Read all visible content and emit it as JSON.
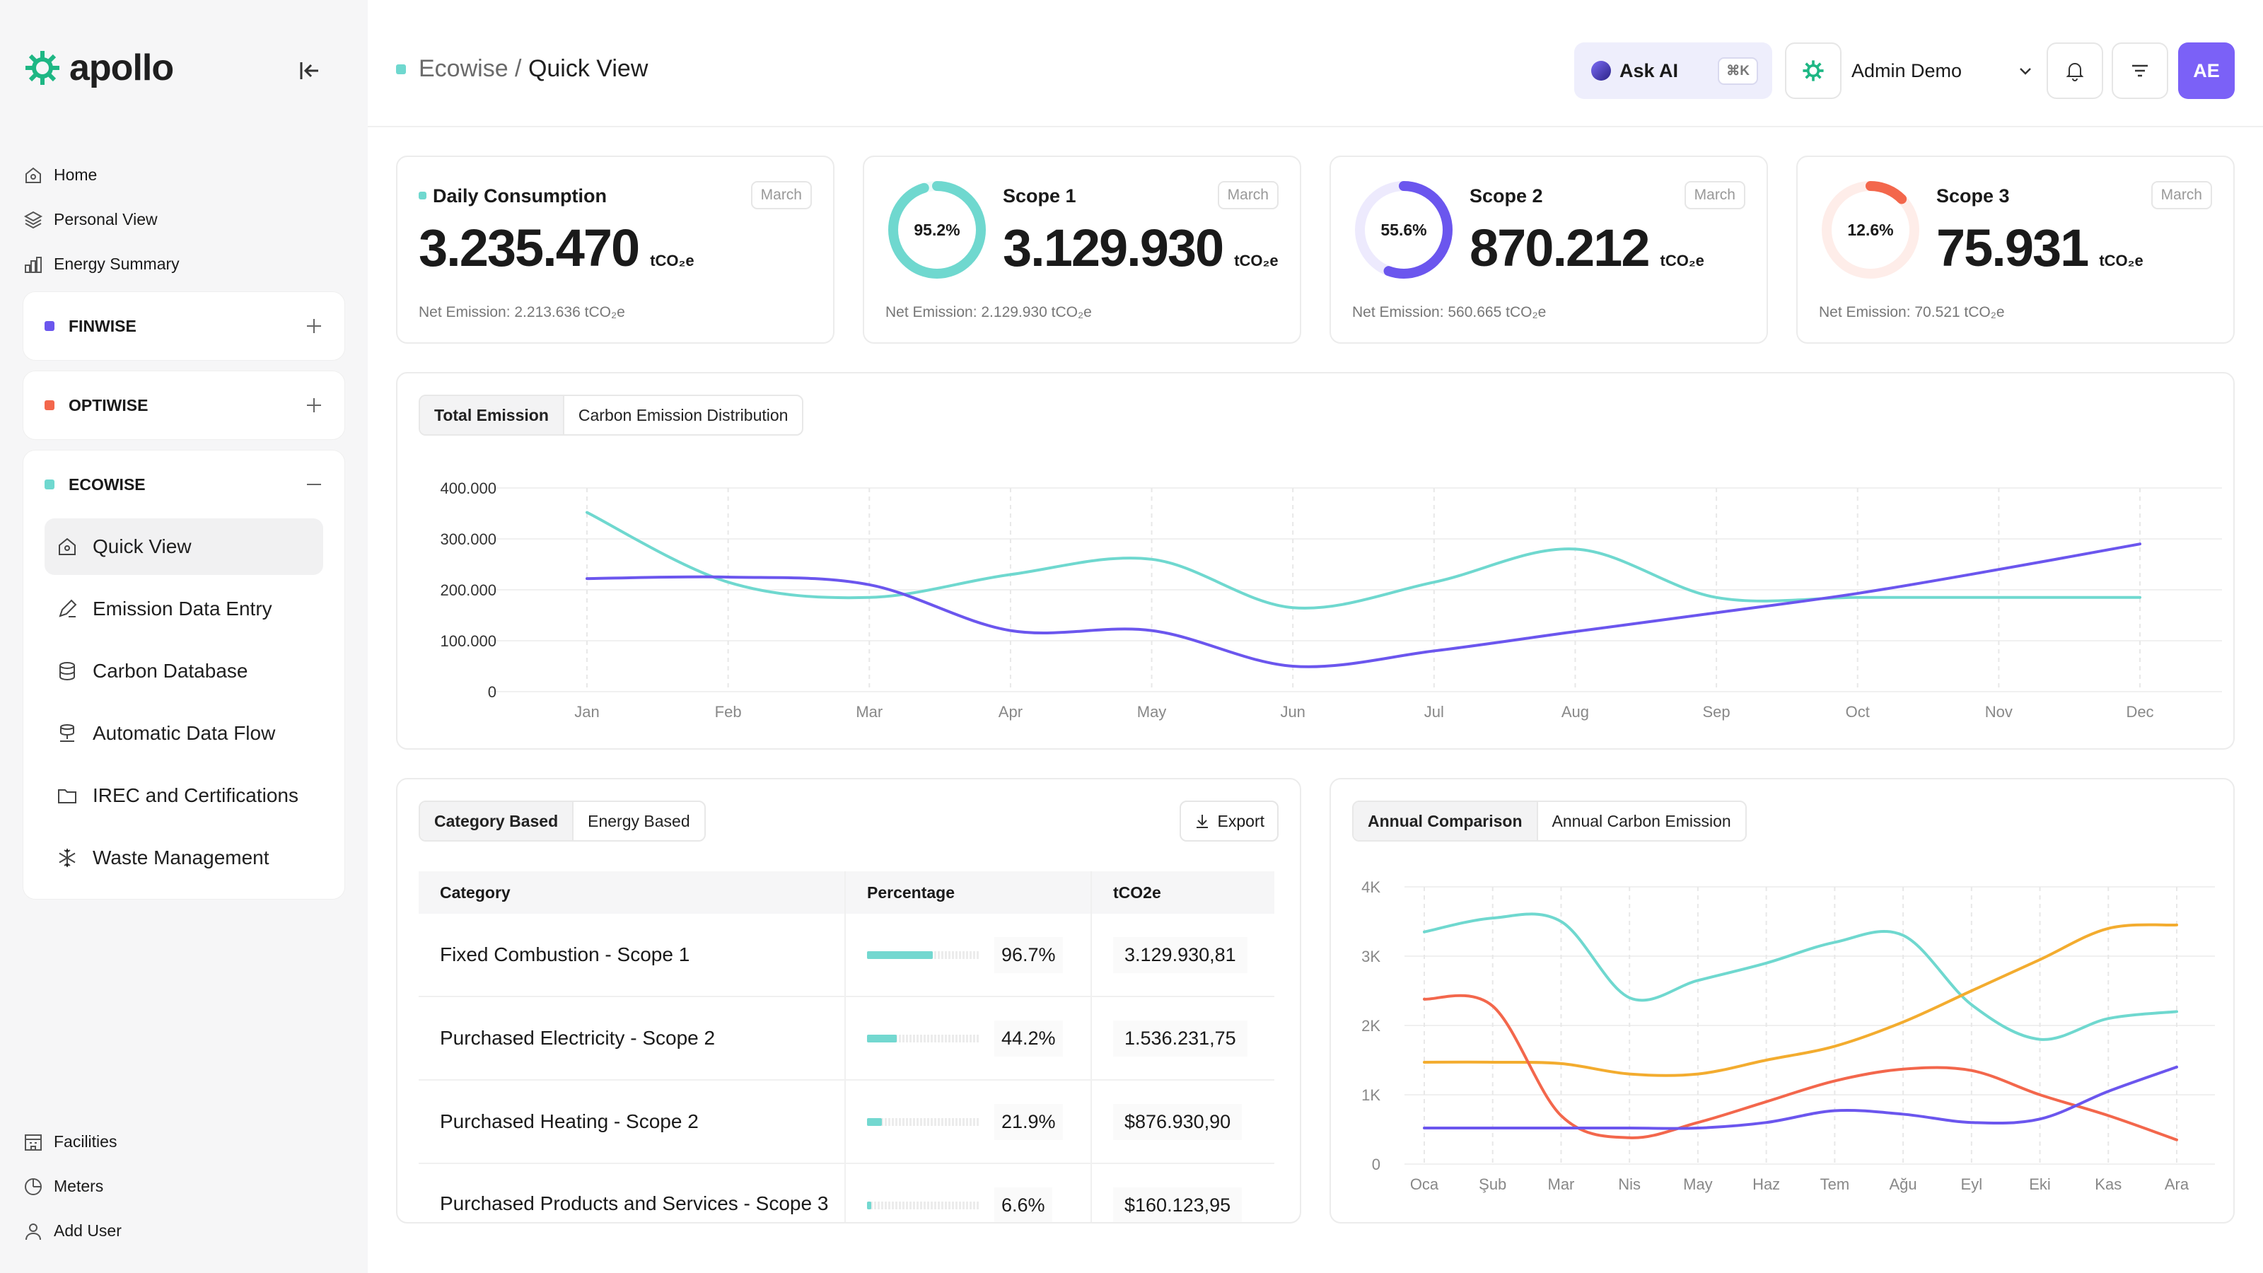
{
  "brand": {
    "name": "apollo",
    "accent": "#1eb784"
  },
  "sidebar": {
    "top": [
      {
        "label": "Home",
        "icon": "home-icon"
      },
      {
        "label": "Personal View",
        "icon": "layers-icon"
      },
      {
        "label": "Energy Summary",
        "icon": "bar-chart-icon"
      }
    ],
    "groups": [
      {
        "label": "FINWISE",
        "color": "#6b56ee",
        "expanded": false
      },
      {
        "label": "OPTIWISE",
        "color": "#f3674c",
        "expanded": false
      },
      {
        "label": "ECOWISE",
        "color": "#6fd8cf",
        "expanded": true,
        "items": [
          {
            "label": "Quick View",
            "icon": "home-icon",
            "active": true
          },
          {
            "label": "Emission Data Entry",
            "icon": "pen-icon"
          },
          {
            "label": "Carbon Database",
            "icon": "database-icon"
          },
          {
            "label": "Automatic Data Flow",
            "icon": "data-flow-icon"
          },
          {
            "label": "IREC and Certifications",
            "icon": "folder-icon"
          },
          {
            "label": "Waste Management",
            "icon": "snowflake-icon"
          }
        ]
      }
    ],
    "bottom": [
      {
        "label": "Facilities",
        "icon": "building-icon"
      },
      {
        "label": "Meters",
        "icon": "meter-icon"
      },
      {
        "label": "Add User",
        "icon": "user-icon"
      }
    ]
  },
  "header": {
    "breadcrumb_parent": "Ecowise",
    "breadcrumb_sep": " / ",
    "breadcrumb_current": "Quick View",
    "ask_ai": "Ask AI",
    "shortcut": "⌘K",
    "user": "Admin Demo",
    "avatar": "AE"
  },
  "kpis": [
    {
      "title": "Daily Consumption",
      "badge": "March",
      "value": "3.235.470",
      "unit": "tCO₂e",
      "net": "Net Emission: 2.213.636 tCO₂e"
    },
    {
      "title": "Scope 1",
      "badge": "March",
      "value": "3.129.930",
      "unit": "tCO₂e",
      "net": "Net Emission: 2.129.930 tCO₂e",
      "pct": "95.2%",
      "pct_value": 95.2,
      "color": "#6fd8cf"
    },
    {
      "title": "Scope 2",
      "badge": "March",
      "value": "870.212",
      "unit": "tCO₂e",
      "net": "Net Emission: 560.665 tCO₂e",
      "pct": "55.6%",
      "pct_value": 55.6,
      "color": "#6b56ee"
    },
    {
      "title": "Scope 3",
      "badge": "March",
      "value": "75.931",
      "unit": "tCO₂e",
      "net": "Net Emission: 70.521 tCO₂e",
      "pct": "12.6%",
      "pct_value": 12.6,
      "color": "#f3674c"
    }
  ],
  "emission_tabs": [
    "Total Emission",
    "Carbon Emission Distribution"
  ],
  "category_tabs": [
    "Category Based",
    "Energy Based"
  ],
  "export_label": "Export",
  "table": {
    "headers": [
      "Category",
      "Percentage",
      "tCO2e"
    ],
    "rows": [
      {
        "category": "Fixed Combustion - Scope 1",
        "pct": "96.7%",
        "pct_value": 96.7,
        "value": "3.129.930,81"
      },
      {
        "category": "Purchased Electricity - Scope 2",
        "pct": "44.2%",
        "pct_value": 44.2,
        "value": "1.536.231,75"
      },
      {
        "category": "Purchased Heating - Scope 2",
        "pct": "21.9%",
        "pct_value": 21.9,
        "value": "$876.930,90"
      },
      {
        "category": "Purchased Products and Services - Scope 3",
        "pct": "6.6%",
        "pct_value": 6.6,
        "value": "$160.123,95"
      }
    ]
  },
  "annual_tabs": [
    "Annual Comparison",
    "Annual Carbon Emission"
  ],
  "chart_data": [
    {
      "type": "line",
      "categories": [
        "Jan",
        "Feb",
        "Mar",
        "Apr",
        "May",
        "Jun",
        "Jul",
        "Aug",
        "Sep",
        "Oct",
        "Nov",
        "Dec"
      ],
      "yticks": [
        "400.000",
        "300.000",
        "200.000",
        "100.000",
        "0"
      ],
      "ylim": [
        0,
        400000
      ],
      "grid": true,
      "series": [
        {
          "color": "#6fd8cf",
          "values": [
            352000,
            215000,
            185000,
            230000,
            260000,
            165000,
            215000,
            280000,
            185000,
            185000,
            185000,
            185000
          ]
        },
        {
          "color": "#6b56ee",
          "values": [
            222000,
            225000,
            210000,
            120000,
            120000,
            50000,
            80000,
            118000,
            155000,
            193000,
            240000,
            290000
          ]
        }
      ]
    },
    {
      "type": "line",
      "categories": [
        "Oca",
        "Şub",
        "Mar",
        "Nis",
        "May",
        "Haz",
        "Tem",
        "Ağu",
        "Eyl",
        "Eki",
        "Kas",
        "Ara"
      ],
      "yticks": [
        "4K",
        "3K",
        "2K",
        "1K",
        "0"
      ],
      "ylim": [
        0,
        4000
      ],
      "grid": true,
      "series": [
        {
          "color": "#6fd8cf",
          "values": [
            3350,
            3550,
            3500,
            2400,
            2650,
            2900,
            3200,
            3300,
            2300,
            1800,
            2100,
            2200
          ]
        },
        {
          "color": "#f3ac2f",
          "values": [
            1470,
            1470,
            1450,
            1300,
            1300,
            1500,
            1700,
            2050,
            2500,
            2950,
            3400,
            3450
          ]
        },
        {
          "color": "#f3674c",
          "values": [
            2380,
            2280,
            700,
            380,
            600,
            900,
            1200,
            1370,
            1350,
            1000,
            700,
            350
          ]
        },
        {
          "color": "#6b56ee",
          "values": [
            520,
            520,
            520,
            520,
            520,
            600,
            770,
            720,
            600,
            650,
            1050,
            1400
          ]
        }
      ]
    }
  ]
}
